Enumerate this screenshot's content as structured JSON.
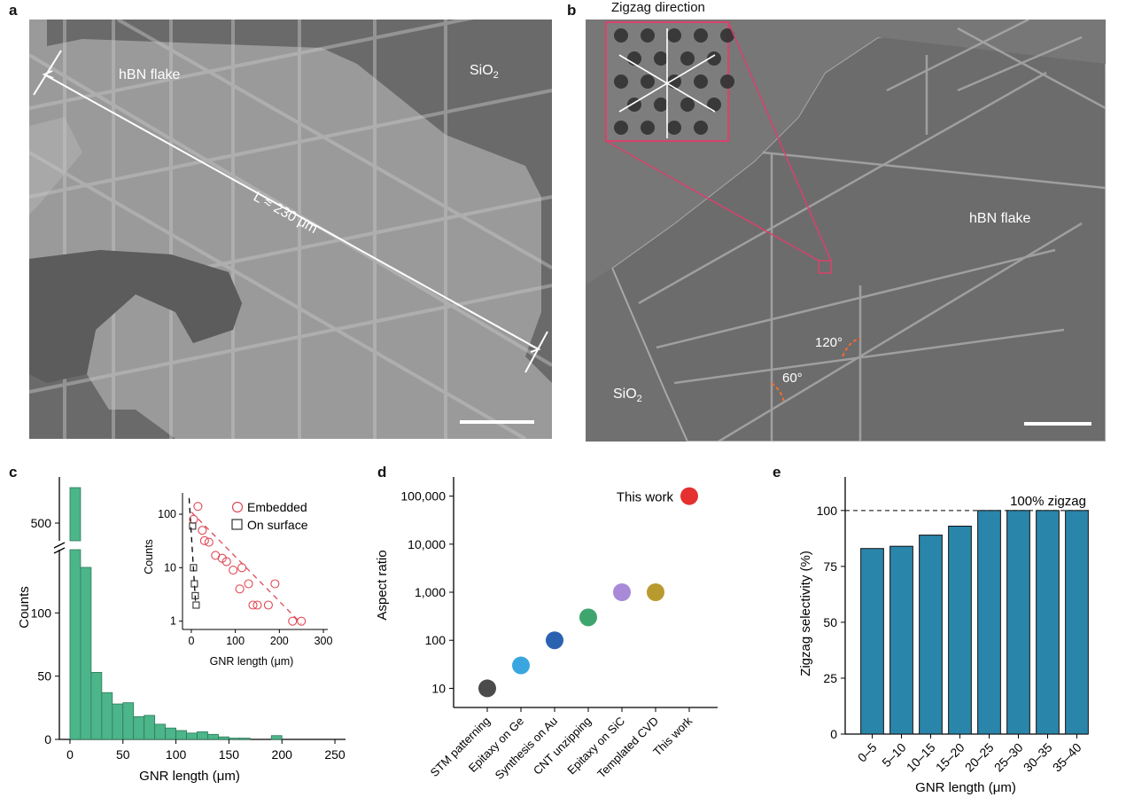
{
  "panels": {
    "a": {
      "letter": "a",
      "flake_label": "hBN flake",
      "substrate_label": "SiO",
      "substrate_sub": "2",
      "length_label": "L ≈ 230 μm"
    },
    "b": {
      "letter": "b",
      "inset_title": "Zigzag direction",
      "flake_label": "hBN flake",
      "substrate_label": "SiO",
      "substrate_sub": "2",
      "angle_120": "120°",
      "angle_60": "60°"
    },
    "c": {
      "letter": "c"
    },
    "d": {
      "letter": "d"
    },
    "e": {
      "letter": "e"
    }
  },
  "colors": {
    "histogram_bar": "#4cb58a",
    "embedded": "#e04a56",
    "on_surface": "#333333",
    "selectivity_bar": "#2a85aa",
    "inset_frame": "#d9416b",
    "angle_marks": "#f26d2d"
  },
  "chart_data": [
    {
      "panel": "c",
      "type": "bar",
      "xlabel": "GNR length (μm)",
      "ylabel": "Counts",
      "x_ticks": [
        "0",
        "50",
        "100",
        "150",
        "200",
        "250"
      ],
      "y_ticks_lower": [
        "0",
        "50",
        "100"
      ],
      "y_ticks_upper": [
        "500"
      ],
      "axis_break": true,
      "bin_width": 10,
      "bins_start": [
        0,
        10,
        20,
        30,
        40,
        50,
        60,
        70,
        80,
        90,
        100,
        110,
        120,
        130,
        140,
        150,
        160,
        170,
        180,
        190,
        200,
        210,
        220,
        230,
        240,
        250
      ],
      "values": [
        600,
        136,
        53,
        37,
        28,
        29,
        18,
        19,
        12,
        9,
        7,
        5,
        6,
        4,
        2,
        1,
        1,
        0,
        0,
        3,
        0,
        0,
        0,
        0,
        0,
        0
      ],
      "xlim": [
        -10,
        260
      ],
      "inset": {
        "type": "scatter",
        "xlabel": "GNR length (μm)",
        "ylabel": "Counts",
        "y_scale": "log",
        "x_ticks": [
          "0",
          "100",
          "200",
          "300"
        ],
        "y_ticks": [
          "1",
          "10",
          "100"
        ],
        "xlim": [
          -20,
          310
        ],
        "ylim": [
          0.7,
          250
        ],
        "legend_position": "top-right",
        "series": [
          {
            "name": "Embedded",
            "marker": "circle",
            "points": [
              [
                5,
                80
              ],
              [
                15,
                140
              ],
              [
                25,
                50
              ],
              [
                30,
                32
              ],
              [
                40,
                30
              ],
              [
                55,
                17
              ],
              [
                70,
                15
              ],
              [
                80,
                13
              ],
              [
                95,
                9
              ],
              [
                110,
                4
              ],
              [
                115,
                10
              ],
              [
                130,
                5
              ],
              [
                140,
                2
              ],
              [
                150,
                2
              ],
              [
                175,
                2
              ],
              [
                190,
                5
              ],
              [
                230,
                1
              ],
              [
                250,
                1
              ]
            ]
          },
          {
            "name": "On surface",
            "marker": "square",
            "points": [
              [
                3,
                60
              ],
              [
                5,
                10
              ],
              [
                7,
                5
              ],
              [
                9,
                3
              ],
              [
                11,
                2
              ]
            ]
          }
        ],
        "fit_lines": [
          {
            "series": "Embedded",
            "points": [
              [
                0,
                110
              ],
              [
                250,
                0.9
              ]
            ]
          },
          {
            "series": "On surface",
            "points": [
              [
                -5,
                200
              ],
              [
                10,
                2
              ]
            ]
          }
        ]
      }
    },
    {
      "panel": "d",
      "type": "scatter",
      "ylabel": "Aspect ratio",
      "y_scale": "log",
      "ylim": [
        4,
        250000
      ],
      "y_ticks": [
        "10",
        "100",
        "1,000",
        "10,000",
        "100,000"
      ],
      "categories": [
        "STM patterning",
        "Epitaxy on Ge",
        "Synthesis on Au",
        "CNT unzipping",
        "Epitaxy on SiC",
        "Templated CVD",
        "This work"
      ],
      "values": [
        10,
        30,
        100,
        300,
        1000,
        1000,
        100000
      ],
      "point_colors": [
        "#4b4b4b",
        "#3aa6e0",
        "#2a62b0",
        "#3fa56e",
        "#a88ad8",
        "#b99a2e",
        "#e53030"
      ],
      "annotations": [
        "This work"
      ]
    },
    {
      "panel": "e",
      "type": "bar",
      "xlabel": "GNR length (μm)",
      "ylabel": "Zigzag selectivity (%)",
      "categories": [
        "0–5",
        "5–10",
        "10–15",
        "15–20",
        "20–25",
        "25–30",
        "30–35",
        "35–40"
      ],
      "values": [
        83,
        84,
        89,
        93,
        100,
        100,
        100,
        100
      ],
      "ylim": [
        0,
        115
      ],
      "y_ticks": [
        "0",
        "25",
        "50",
        "75",
        "100"
      ],
      "reference_line": {
        "value": 100,
        "label": "100% zigzag"
      }
    }
  ]
}
